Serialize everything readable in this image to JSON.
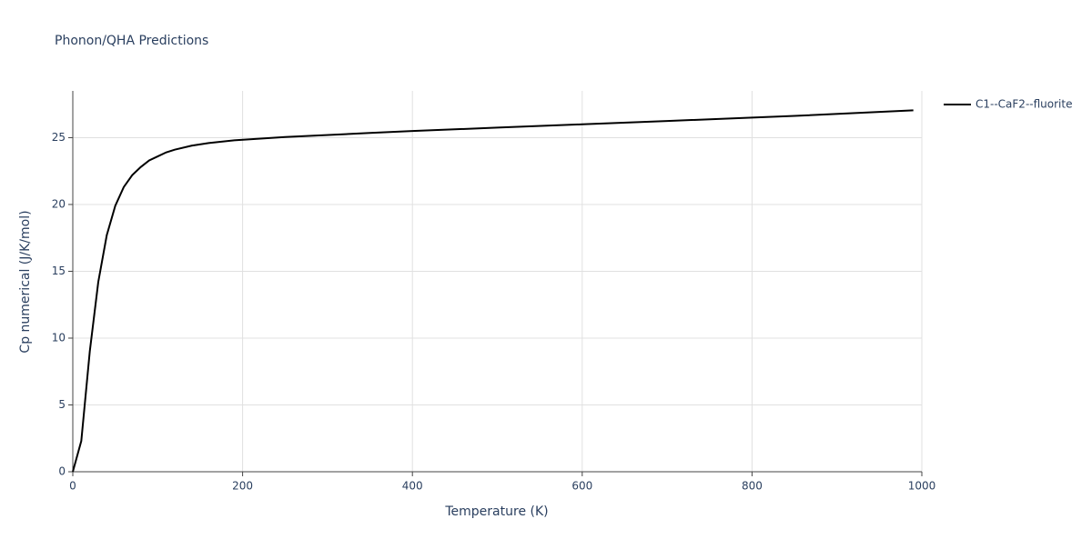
{
  "chart_data": {
    "type": "line",
    "title": "Phonon/QHA Predictions",
    "x_label": "Temperature (K)",
    "y_label": "Cp numerical (J/K/mol)",
    "x": [
      0,
      10,
      20,
      30,
      40,
      50,
      60,
      70,
      80,
      90,
      100,
      110,
      120,
      140,
      160,
      190,
      250,
      350,
      400,
      500,
      600,
      700,
      800,
      850,
      990
    ],
    "series": [
      {
        "name": "C1--CaF2--fluorite",
        "color": "#000000",
        "values": [
          0,
          2.3,
          9.0,
          14.2,
          17.7,
          19.9,
          21.3,
          22.2,
          22.8,
          23.3,
          23.6,
          23.9,
          24.1,
          24.4,
          24.6,
          24.8,
          25.05,
          25.35,
          25.5,
          25.75,
          26.0,
          26.25,
          26.5,
          26.63,
          27.05
        ]
      }
    ],
    "xlim": [
      0,
      1000
    ],
    "xticks": [
      0,
      200,
      400,
      600,
      800,
      1000
    ],
    "ylim": [
      0,
      28.5
    ],
    "yticks": [
      0,
      5,
      10,
      15,
      20,
      25
    ],
    "grid": true,
    "legend": "right"
  }
}
